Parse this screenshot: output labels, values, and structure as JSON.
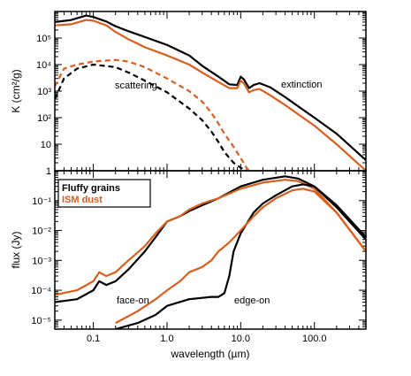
{
  "chart_data": [
    {
      "type": "line",
      "panel": "top",
      "ylabel": "K (cm²/g)",
      "xscale": "log",
      "yscale": "log",
      "xlim": [
        0.03,
        500
      ],
      "ylim": [
        1,
        1000000
      ],
      "x_tick_labels": [],
      "y_tick_labels": [
        "1",
        "10",
        "10²",
        "10³",
        "10⁴",
        "10⁵"
      ],
      "y_tick_values": [
        1,
        10,
        100,
        1000,
        10000,
        100000
      ],
      "annotations": [
        "scattering",
        "extinction"
      ],
      "series": [
        {
          "color": "#000000",
          "dash": "solid",
          "role": "extinction, fluffy grains",
          "points": [
            [
              0.03,
              400000
            ],
            [
              0.05,
              480000
            ],
            [
              0.08,
              700000
            ],
            [
              0.1,
              620000
            ],
            [
              0.15,
              420000
            ],
            [
              0.2,
              280000
            ],
            [
              0.3,
              180000
            ],
            [
              0.5,
              110000
            ],
            [
              1.0,
              55000
            ],
            [
              2.0,
              22000
            ],
            [
              3.0,
              9000
            ],
            [
              5.0,
              3500
            ],
            [
              7.0,
              1800
            ],
            [
              9.0,
              1700
            ],
            [
              10.0,
              3500
            ],
            [
              11.0,
              2800
            ],
            [
              13.0,
              1300
            ],
            [
              15.0,
              1700
            ],
            [
              18.0,
              2000
            ],
            [
              25.0,
              1400
            ],
            [
              40.0,
              600
            ],
            [
              70.0,
              200
            ],
            [
              100.0,
              100
            ],
            [
              200.0,
              25
            ],
            [
              500.0,
              2.5
            ]
          ]
        },
        {
          "color": "#d95f1e",
          "dash": "solid",
          "role": "extinction, ISM dust",
          "points": [
            [
              0.03,
              300000
            ],
            [
              0.05,
              330000
            ],
            [
              0.08,
              480000
            ],
            [
              0.1,
              450000
            ],
            [
              0.15,
              300000
            ],
            [
              0.2,
              170000
            ],
            [
              0.3,
              90000
            ],
            [
              0.5,
              45000
            ],
            [
              1.0,
              22000
            ],
            [
              2.0,
              10000
            ],
            [
              3.0,
              5000
            ],
            [
              5.0,
              2200
            ],
            [
              7.0,
              1300
            ],
            [
              9.0,
              1300
            ],
            [
              10.0,
              2500
            ],
            [
              11.0,
              2000
            ],
            [
              13.0,
              900
            ],
            [
              15.0,
              1100
            ],
            [
              18.0,
              1200
            ],
            [
              25.0,
              700
            ],
            [
              40.0,
              300
            ],
            [
              70.0,
              100
            ],
            [
              100.0,
              50
            ],
            [
              200.0,
              10
            ],
            [
              500.0,
              1.0
            ]
          ]
        },
        {
          "color": "#000000",
          "dash": "dashed",
          "role": "scattering, fluffy grains",
          "points": [
            [
              0.03,
              500
            ],
            [
              0.04,
              3000
            ],
            [
              0.06,
              7000
            ],
            [
              0.1,
              10000
            ],
            [
              0.2,
              8000
            ],
            [
              0.3,
              5000
            ],
            [
              0.5,
              2500
            ],
            [
              1.0,
              900
            ],
            [
              2.0,
              220
            ],
            [
              3.0,
              80
            ],
            [
              4.0,
              30
            ],
            [
              5.0,
              12
            ],
            [
              6.0,
              5
            ],
            [
              8.0,
              2
            ],
            [
              10.0,
              1.3
            ],
            [
              12.0,
              1
            ]
          ]
        },
        {
          "color": "#d95f1e",
          "dash": "dashed",
          "role": "scattering, ISM dust",
          "points": [
            [
              0.03,
              1500
            ],
            [
              0.04,
              7000
            ],
            [
              0.06,
              10000
            ],
            [
              0.1,
              13000
            ],
            [
              0.2,
              15000
            ],
            [
              0.3,
              13000
            ],
            [
              0.5,
              8000
            ],
            [
              1.0,
              3000
            ],
            [
              2.0,
              1000
            ],
            [
              3.0,
              400
            ],
            [
              4.0,
              150
            ],
            [
              5.0,
              60
            ],
            [
              6.0,
              25
            ],
            [
              8.0,
              8
            ],
            [
              10.0,
              3
            ],
            [
              12.0,
              1.3
            ],
            [
              13.0,
              1
            ]
          ]
        }
      ]
    },
    {
      "type": "line",
      "panel": "bottom",
      "xlabel": "wavelength (µm)",
      "ylabel": "flux (Jy)",
      "xscale": "log",
      "yscale": "log",
      "xlim": [
        0.03,
        500
      ],
      "ylim": [
        5e-06,
        1
      ],
      "x_tick_labels": [
        "0.1",
        "1.0",
        "10.0",
        "100.0"
      ],
      "x_tick_values": [
        0.1,
        1.0,
        10.0,
        100.0
      ],
      "y_tick_labels": [
        "10⁻⁵",
        "10⁻⁴",
        "10⁻³",
        "10⁻²",
        "10⁻¹"
      ],
      "y_tick_values": [
        1e-05,
        0.0001,
        0.001,
        0.01,
        0.1
      ],
      "legend": {
        "placement": "top-left",
        "entries": [
          {
            "label": "Fluffy grains",
            "color": "#000000"
          },
          {
            "label": "ISM dust",
            "color": "#d95f1e"
          }
        ]
      },
      "annotations": [
        "face-on",
        "edge-on"
      ],
      "series": [
        {
          "color": "#000000",
          "dash": "solid",
          "role": "face-on, fluffy grains",
          "points": [
            [
              0.03,
              4e-05
            ],
            [
              0.06,
              5e-05
            ],
            [
              0.1,
              0.0001
            ],
            [
              0.12,
              0.0002
            ],
            [
              0.15,
              0.00015
            ],
            [
              0.2,
              0.0002
            ],
            [
              0.3,
              0.0005
            ],
            [
              0.5,
              0.002
            ],
            [
              0.7,
              0.006
            ],
            [
              1.0,
              0.02
            ],
            [
              1.5,
              0.03
            ],
            [
              2.0,
              0.045
            ],
            [
              3.0,
              0.07
            ],
            [
              5.0,
              0.12
            ],
            [
              10.0,
              0.3
            ],
            [
              20.0,
              0.5
            ],
            [
              40.0,
              0.65
            ],
            [
              60.0,
              0.55
            ],
            [
              100.0,
              0.3
            ],
            [
              200.0,
              0.07
            ],
            [
              500.0,
              0.006
            ]
          ]
        },
        {
          "color": "#d95f1e",
          "dash": "solid",
          "role": "face-on, ISM dust",
          "points": [
            [
              0.03,
              7e-05
            ],
            [
              0.06,
              0.0001
            ],
            [
              0.1,
              0.0002
            ],
            [
              0.12,
              0.0004
            ],
            [
              0.15,
              0.0003
            ],
            [
              0.2,
              0.0004
            ],
            [
              0.3,
              0.001
            ],
            [
              0.5,
              0.003
            ],
            [
              0.7,
              0.008
            ],
            [
              1.0,
              0.02
            ],
            [
              1.5,
              0.03
            ],
            [
              2.0,
              0.05
            ],
            [
              3.0,
              0.08
            ],
            [
              5.0,
              0.12
            ],
            [
              10.0,
              0.25
            ],
            [
              20.0,
              0.4
            ],
            [
              40.0,
              0.5
            ],
            [
              60.0,
              0.45
            ],
            [
              100.0,
              0.25
            ],
            [
              200.0,
              0.04
            ],
            [
              500.0,
              0.002
            ]
          ]
        },
        {
          "color": "#000000",
          "dash": "solid",
          "role": "edge-on, fluffy grains",
          "points": [
            [
              0.2,
              5e-06
            ],
            [
              0.4,
              8e-06
            ],
            [
              0.7,
              1.5e-05
            ],
            [
              1.0,
              3e-05
            ],
            [
              2.0,
              5e-05
            ],
            [
              4.0,
              6e-05
            ],
            [
              5.0,
              6e-05
            ],
            [
              6.0,
              8e-05
            ],
            [
              7.0,
              0.0003
            ],
            [
              8.0,
              0.002
            ],
            [
              10.0,
              0.008
            ],
            [
              15.0,
              0.04
            ],
            [
              20.0,
              0.08
            ],
            [
              30.0,
              0.15
            ],
            [
              50.0,
              0.3
            ],
            [
              70.0,
              0.35
            ],
            [
              100.0,
              0.3
            ],
            [
              200.0,
              0.06
            ],
            [
              500.0,
              0.005
            ]
          ]
        },
        {
          "color": "#d95f1e",
          "dash": "solid",
          "role": "edge-on, ISM dust",
          "points": [
            [
              0.2,
              8e-06
            ],
            [
              0.4,
              2e-05
            ],
            [
              0.7,
              5e-05
            ],
            [
              1.0,
              0.0001
            ],
            [
              1.5,
              0.0002
            ],
            [
              2.0,
              0.0004
            ],
            [
              3.0,
              0.0006
            ],
            [
              4.0,
              0.001
            ],
            [
              5.0,
              0.002
            ],
            [
              7.0,
              0.004
            ],
            [
              10.0,
              0.01
            ],
            [
              15.0,
              0.03
            ],
            [
              20.0,
              0.06
            ],
            [
              30.0,
              0.12
            ],
            [
              50.0,
              0.22
            ],
            [
              70.0,
              0.25
            ],
            [
              100.0,
              0.2
            ],
            [
              200.0,
              0.04
            ],
            [
              500.0,
              0.002
            ]
          ]
        }
      ]
    }
  ]
}
